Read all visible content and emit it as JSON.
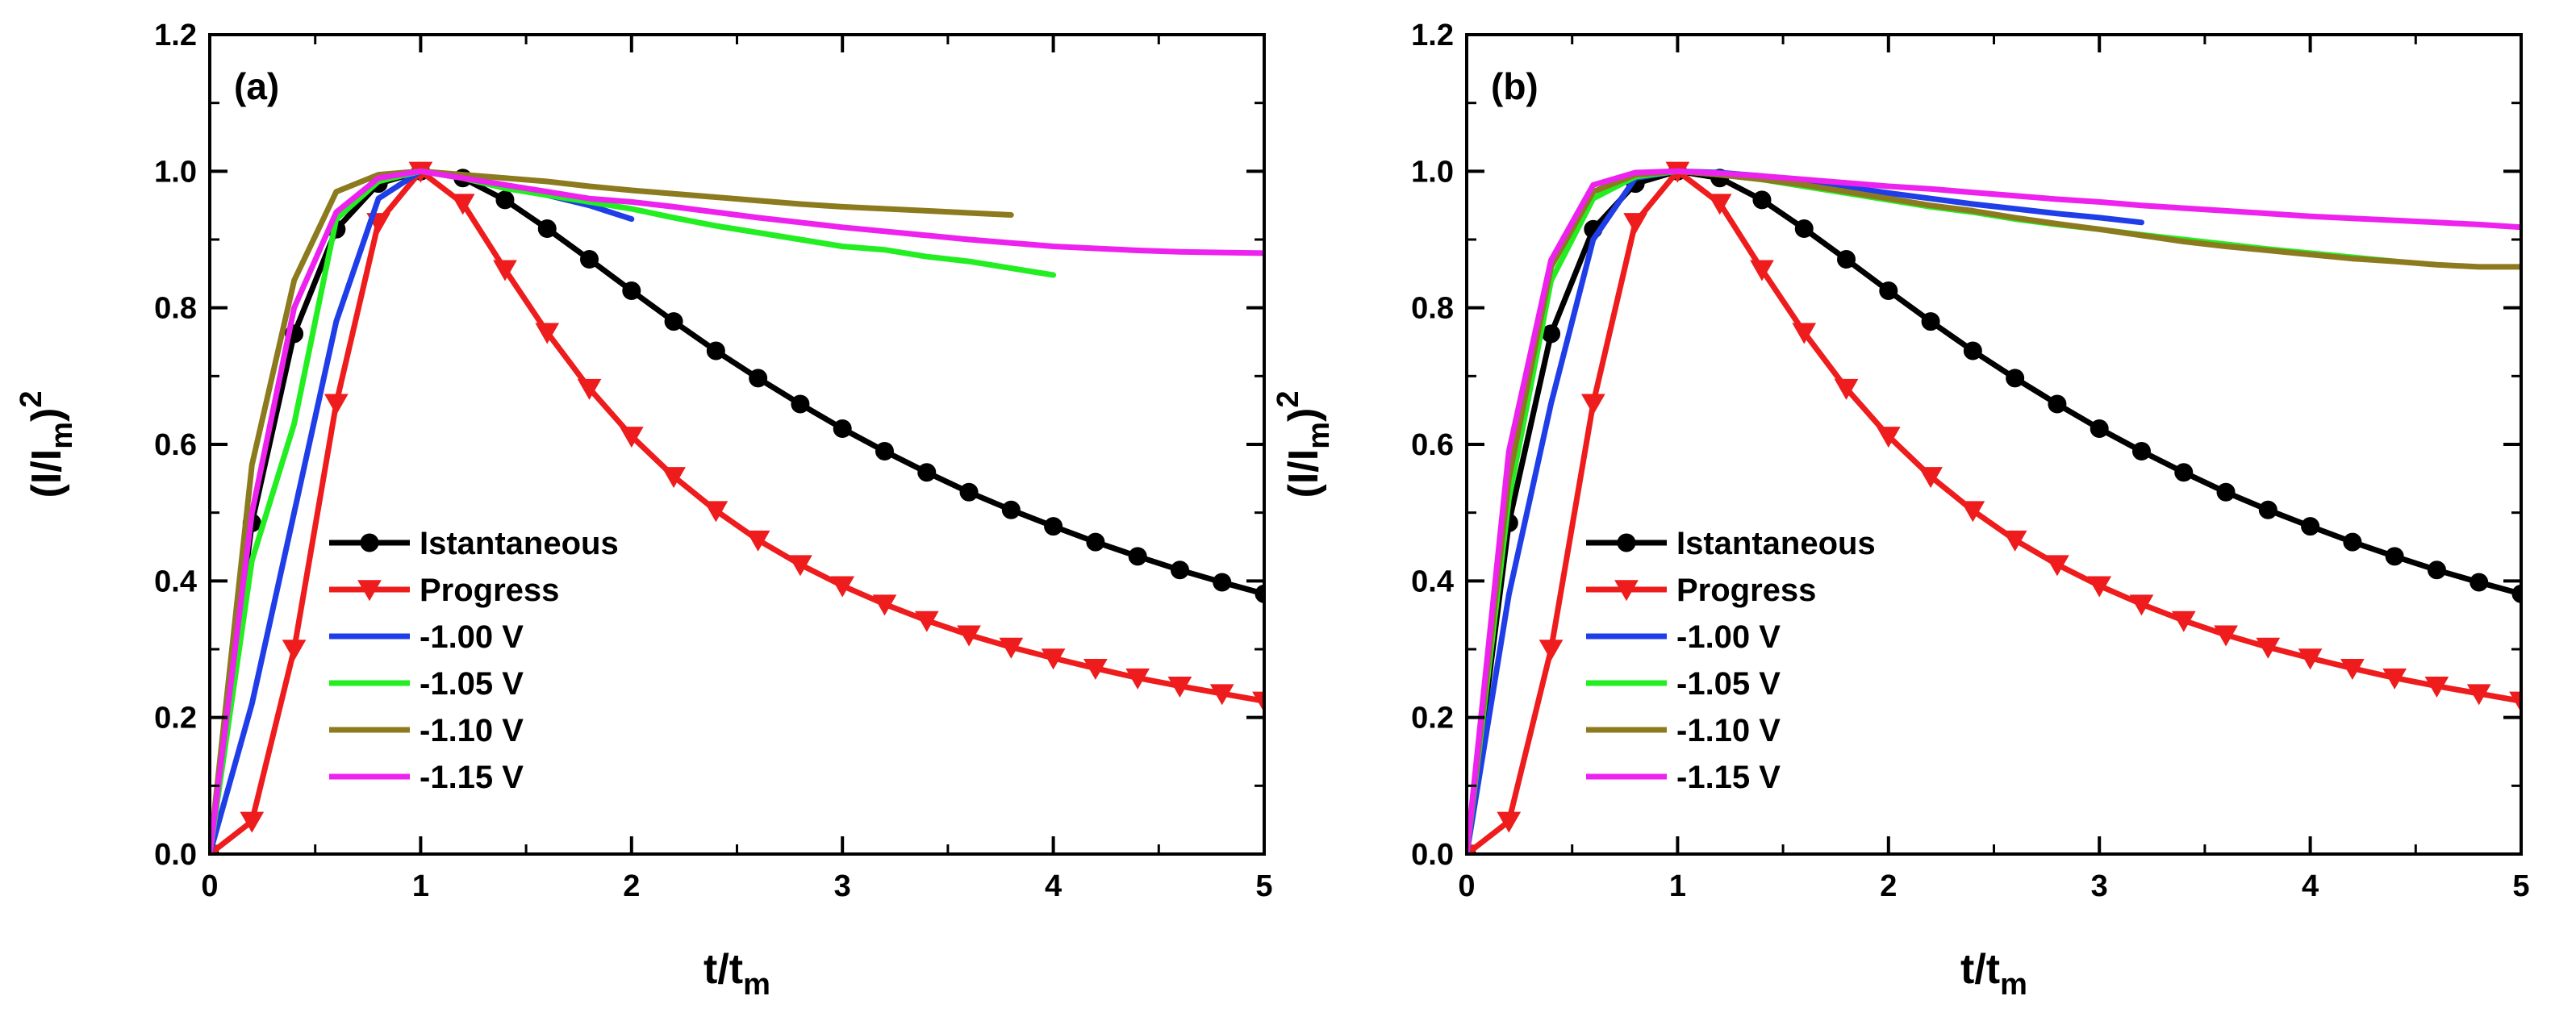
{
  "chart_data": [
    {
      "type": "line",
      "panel_label": "(a)",
      "xlabel_main": "t/t",
      "xlabel_sub": "m",
      "ylabel_main": "(I/I",
      "ylabel_sub": "m",
      "ylabel_close": ")",
      "ylabel_sup": "2",
      "xlim": [
        0,
        5
      ],
      "ylim": [
        0,
        1.2
      ],
      "x_ticks": [
        0,
        1,
        2,
        3,
        4,
        5
      ],
      "x_tick_labels": [
        "0",
        "1",
        "2",
        "3",
        "4",
        "5"
      ],
      "y_ticks": [
        0,
        0.2,
        0.4,
        0.6,
        0.8,
        1.0,
        1.2
      ],
      "y_tick_labels": [
        "0.0",
        "0.2",
        "0.4",
        "0.6",
        "0.8",
        "1.0",
        "1.2"
      ],
      "legend_position": "lower-left",
      "series": [
        {
          "name": "Istantaneous",
          "color": "#000000",
          "marker": "circle",
          "x": [
            0,
            0.2,
            0.4,
            0.6,
            0.8,
            1.0,
            1.2,
            1.4,
            1.6,
            1.8,
            2.0,
            2.2,
            2.4,
            2.6,
            2.8,
            3.0,
            3.2,
            3.4,
            3.6,
            3.8,
            4.0,
            4.2,
            4.4,
            4.6,
            4.8,
            5.0
          ],
          "y": [
            0,
            0.485,
            0.762,
            0.915,
            0.982,
            1.0,
            0.99,
            0.958,
            0.916,
            0.871,
            0.825,
            0.78,
            0.737,
            0.697,
            0.659,
            0.623,
            0.59,
            0.559,
            0.53,
            0.504,
            0.48,
            0.457,
            0.436,
            0.416,
            0.398,
            0.381
          ]
        },
        {
          "name": "Progress",
          "color": "#ee1c1c",
          "marker": "triangle-down",
          "x": [
            0,
            0.2,
            0.4,
            0.6,
            0.8,
            1.0,
            1.2,
            1.4,
            1.6,
            1.8,
            2.0,
            2.2,
            2.4,
            2.6,
            2.8,
            3.0,
            3.2,
            3.4,
            3.6,
            3.8,
            4.0,
            4.2,
            4.4,
            4.6,
            4.8,
            5.0
          ],
          "y": [
            0,
            0.048,
            0.3,
            0.66,
            0.925,
            1.0,
            0.953,
            0.856,
            0.764,
            0.682,
            0.612,
            0.553,
            0.503,
            0.46,
            0.424,
            0.393,
            0.366,
            0.342,
            0.321,
            0.303,
            0.287,
            0.272,
            0.258,
            0.246,
            0.235,
            0.224
          ]
        },
        {
          "name": "-1.00 V",
          "color": "#1f3ee8",
          "marker": "none",
          "x": [
            0,
            0.2,
            0.4,
            0.6,
            0.8,
            1.0,
            1.2,
            1.4,
            1.6,
            1.8,
            2.0
          ],
          "y": [
            0,
            0.22,
            0.5,
            0.78,
            0.96,
            1.0,
            0.99,
            0.98,
            0.965,
            0.95,
            0.93
          ]
        },
        {
          "name": "-1.05 V",
          "color": "#22ee22",
          "marker": "none",
          "x": [
            0,
            0.2,
            0.4,
            0.6,
            0.8,
            1.0,
            1.2,
            1.4,
            1.6,
            1.8,
            2.0,
            2.2,
            2.4,
            2.6,
            2.8,
            3.0,
            3.2,
            3.4,
            3.6,
            3.8,
            4.0
          ],
          "y": [
            0,
            0.43,
            0.63,
            0.93,
            0.985,
            1.0,
            0.99,
            0.975,
            0.965,
            0.955,
            0.945,
            0.932,
            0.92,
            0.91,
            0.9,
            0.89,
            0.885,
            0.875,
            0.868,
            0.858,
            0.848
          ]
        },
        {
          "name": "-1.10 V",
          "color": "#8c7a1e",
          "marker": "none",
          "x": [
            0,
            0.2,
            0.4,
            0.6,
            0.8,
            1.0,
            1.2,
            1.4,
            1.6,
            1.8,
            2.0,
            2.2,
            2.4,
            2.6,
            2.8,
            3.0,
            3.2,
            3.4,
            3.6,
            3.8
          ],
          "y": [
            0,
            0.57,
            0.84,
            0.97,
            0.995,
            1.0,
            0.995,
            0.99,
            0.985,
            0.978,
            0.972,
            0.967,
            0.962,
            0.957,
            0.952,
            0.948,
            0.945,
            0.942,
            0.939,
            0.936
          ]
        },
        {
          "name": "-1.15 V",
          "color": "#ee22ee",
          "marker": "none",
          "x": [
            0,
            0.2,
            0.4,
            0.6,
            0.8,
            1.0,
            1.2,
            1.4,
            1.6,
            1.8,
            2.0,
            2.2,
            2.4,
            2.6,
            2.8,
            3.0,
            3.2,
            3.4,
            3.6,
            3.8,
            4.0,
            4.2,
            4.4,
            4.6,
            4.8,
            5.0
          ],
          "y": [
            0,
            0.5,
            0.8,
            0.94,
            0.99,
            1.0,
            0.99,
            0.98,
            0.97,
            0.96,
            0.955,
            0.948,
            0.94,
            0.932,
            0.925,
            0.918,
            0.912,
            0.906,
            0.9,
            0.895,
            0.89,
            0.887,
            0.884,
            0.882,
            0.881,
            0.88
          ]
        }
      ]
    },
    {
      "type": "line",
      "panel_label": "(b)",
      "xlabel_main": "t/t",
      "xlabel_sub": "m",
      "ylabel_main": "(I/I",
      "ylabel_sub": "m",
      "ylabel_close": ")",
      "ylabel_sup": "2",
      "xlim": [
        0,
        5
      ],
      "ylim": [
        0,
        1.2
      ],
      "x_ticks": [
        0,
        1,
        2,
        3,
        4,
        5
      ],
      "x_tick_labels": [
        "0",
        "1",
        "2",
        "3",
        "4",
        "5"
      ],
      "y_ticks": [
        0,
        0.2,
        0.4,
        0.6,
        0.8,
        1.0,
        1.2
      ],
      "y_tick_labels": [
        "0.0",
        "0.2",
        "0.4",
        "0.6",
        "0.8",
        "1.0",
        "1.2"
      ],
      "legend_position": "lower-left",
      "series": [
        {
          "name": "Istantaneous",
          "color": "#000000",
          "marker": "circle",
          "x": [
            0,
            0.2,
            0.4,
            0.6,
            0.8,
            1.0,
            1.2,
            1.4,
            1.6,
            1.8,
            2.0,
            2.2,
            2.4,
            2.6,
            2.8,
            3.0,
            3.2,
            3.4,
            3.6,
            3.8,
            4.0,
            4.2,
            4.4,
            4.6,
            4.8,
            5.0
          ],
          "y": [
            0,
            0.485,
            0.762,
            0.915,
            0.982,
            1.0,
            0.99,
            0.958,
            0.916,
            0.871,
            0.825,
            0.78,
            0.737,
            0.697,
            0.659,
            0.623,
            0.59,
            0.559,
            0.53,
            0.504,
            0.48,
            0.457,
            0.436,
            0.416,
            0.398,
            0.381
          ]
        },
        {
          "name": "Progress",
          "color": "#ee1c1c",
          "marker": "triangle-down",
          "x": [
            0,
            0.2,
            0.4,
            0.6,
            0.8,
            1.0,
            1.2,
            1.4,
            1.6,
            1.8,
            2.0,
            2.2,
            2.4,
            2.6,
            2.8,
            3.0,
            3.2,
            3.4,
            3.6,
            3.8,
            4.0,
            4.2,
            4.4,
            4.6,
            4.8,
            5.0
          ],
          "y": [
            0,
            0.048,
            0.3,
            0.66,
            0.925,
            1.0,
            0.953,
            0.856,
            0.764,
            0.682,
            0.612,
            0.553,
            0.503,
            0.46,
            0.424,
            0.393,
            0.366,
            0.342,
            0.321,
            0.303,
            0.287,
            0.272,
            0.258,
            0.246,
            0.235,
            0.224
          ]
        },
        {
          "name": "-1.00 V",
          "color": "#1f3ee8",
          "marker": "none",
          "x": [
            0,
            0.2,
            0.4,
            0.6,
            0.8,
            1.0,
            1.2,
            1.4,
            1.6,
            1.8,
            2.0,
            2.2,
            2.4,
            2.6,
            2.8,
            3.0,
            3.2
          ],
          "y": [
            0,
            0.38,
            0.66,
            0.9,
            0.99,
            1.0,
            0.998,
            0.993,
            0.985,
            0.977,
            0.968,
            0.96,
            0.952,
            0.945,
            0.938,
            0.932,
            0.925
          ]
        },
        {
          "name": "-1.05 V",
          "color": "#22ee22",
          "marker": "none",
          "x": [
            0,
            0.2,
            0.4,
            0.6,
            0.8,
            1.0,
            1.2,
            1.4,
            1.6,
            1.8,
            2.0,
            2.2,
            2.4,
            2.6,
            2.8,
            3.0,
            3.2,
            3.4,
            3.6,
            3.8,
            4.0,
            4.2,
            4.4
          ],
          "y": [
            0,
            0.52,
            0.84,
            0.96,
            0.992,
            1.0,
            0.995,
            0.988,
            0.978,
            0.968,
            0.958,
            0.948,
            0.94,
            0.93,
            0.922,
            0.915,
            0.907,
            0.9,
            0.893,
            0.886,
            0.88,
            0.874,
            0.868
          ]
        },
        {
          "name": "-1.10 V",
          "color": "#8c7a1e",
          "marker": "none",
          "x": [
            0,
            0.2,
            0.4,
            0.6,
            0.8,
            1.0,
            1.2,
            1.4,
            1.6,
            1.8,
            2.0,
            2.2,
            2.4,
            2.6,
            2.8,
            3.0,
            3.2,
            3.4,
            3.6,
            3.8,
            4.0,
            4.2,
            4.4,
            4.6,
            4.8,
            5.0
          ],
          "y": [
            0,
            0.55,
            0.86,
            0.97,
            0.995,
            1.0,
            0.995,
            0.988,
            0.98,
            0.97,
            0.96,
            0.95,
            0.942,
            0.932,
            0.923,
            0.915,
            0.906,
            0.897,
            0.89,
            0.884,
            0.878,
            0.872,
            0.868,
            0.863,
            0.86,
            0.86
          ]
        },
        {
          "name": "-1.15 V",
          "color": "#ee22ee",
          "marker": "none",
          "x": [
            0,
            0.2,
            0.4,
            0.6,
            0.8,
            1.0,
            1.2,
            1.4,
            1.6,
            1.8,
            2.0,
            2.2,
            2.4,
            2.6,
            2.8,
            3.0,
            3.2,
            3.4,
            3.6,
            3.8,
            4.0,
            4.2,
            4.4,
            4.6,
            4.8,
            5.0
          ],
          "y": [
            0,
            0.59,
            0.87,
            0.98,
            0.998,
            1.0,
            0.997,
            0.993,
            0.988,
            0.983,
            0.978,
            0.974,
            0.969,
            0.964,
            0.959,
            0.955,
            0.95,
            0.946,
            0.942,
            0.938,
            0.934,
            0.931,
            0.928,
            0.925,
            0.922,
            0.918
          ]
        }
      ]
    }
  ]
}
